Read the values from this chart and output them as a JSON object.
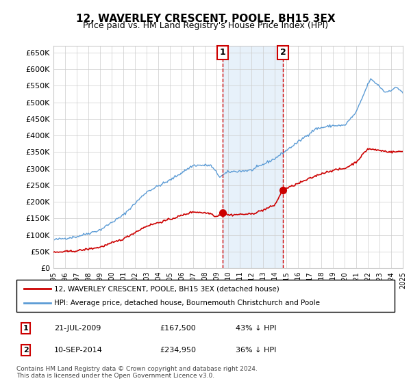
{
  "title": "12, WAVERLEY CRESCENT, POOLE, BH15 3EX",
  "subtitle": "Price paid vs. HM Land Registry's House Price Index (HPI)",
  "ylabel": "",
  "xlabel": "",
  "ylim": [
    0,
    670000
  ],
  "yticks": [
    0,
    50000,
    100000,
    150000,
    200000,
    250000,
    300000,
    350000,
    400000,
    450000,
    500000,
    550000,
    600000,
    650000
  ],
  "sale1_date": 2009.55,
  "sale1_price": 167500,
  "sale1_label": "1",
  "sale2_date": 2014.7,
  "sale2_price": 234950,
  "sale2_label": "2",
  "hpi_color": "#5b9bd5",
  "sale_color": "#cc0000",
  "marker_color": "#cc0000",
  "vline_color": "#cc0000",
  "shade_color": "#d0e4f7",
  "grid_color": "#cccccc",
  "background_color": "#ffffff",
  "legend_items": [
    "12, WAVERLEY CRESCENT, POOLE, BH15 3EX (detached house)",
    "HPI: Average price, detached house, Bournemouth Christchurch and Poole"
  ],
  "legend_colors": [
    "#cc0000",
    "#5b9bd5"
  ],
  "table_rows": [
    {
      "num": "1",
      "date": "21-JUL-2009",
      "price": "£167,500",
      "hpi": "43% ↓ HPI"
    },
    {
      "num": "2",
      "date": "10-SEP-2014",
      "price": "£234,950",
      "hpi": "36% ↓ HPI"
    }
  ],
  "footer": "Contains HM Land Registry data © Crown copyright and database right 2024.\nThis data is licensed under the Open Government Licence v3.0.",
  "xstart": 1995,
  "xend": 2025
}
